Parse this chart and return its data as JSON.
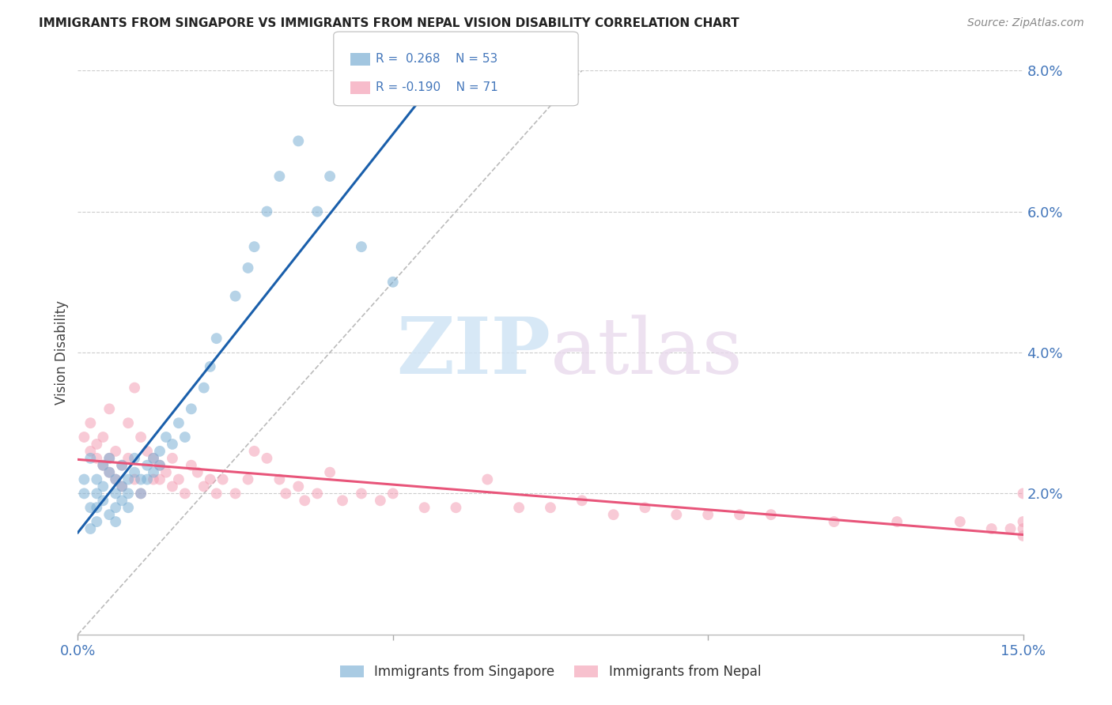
{
  "title": "IMMIGRANTS FROM SINGAPORE VS IMMIGRANTS FROM NEPAL VISION DISABILITY CORRELATION CHART",
  "source": "Source: ZipAtlas.com",
  "ylabel": "Vision Disability",
  "xlim": [
    0.0,
    0.15
  ],
  "ylim": [
    0.0,
    0.08
  ],
  "yticks_right": [
    0.02,
    0.04,
    0.06,
    0.08
  ],
  "xticks": [
    0.0,
    0.05,
    0.1,
    0.15
  ],
  "singapore_R": 0.268,
  "singapore_N": 53,
  "nepal_R": -0.19,
  "nepal_N": 71,
  "singapore_color": "#7BAFD4",
  "nepal_color": "#F4A0B5",
  "trend_singapore_color": "#1A5FAB",
  "trend_nepal_color": "#E8557A",
  "diagonal_color": "#BBBBBB",
  "watermark_zip": "ZIP",
  "watermark_atlas": "atlas",
  "background_color": "#FFFFFF",
  "grid_color": "#CCCCCC",
  "axis_color": "#4477BB",
  "singapore_x": [
    0.001,
    0.001,
    0.002,
    0.002,
    0.002,
    0.003,
    0.003,
    0.003,
    0.003,
    0.004,
    0.004,
    0.004,
    0.005,
    0.005,
    0.005,
    0.006,
    0.006,
    0.006,
    0.006,
    0.007,
    0.007,
    0.007,
    0.008,
    0.008,
    0.008,
    0.009,
    0.009,
    0.01,
    0.01,
    0.011,
    0.011,
    0.012,
    0.012,
    0.013,
    0.013,
    0.014,
    0.015,
    0.016,
    0.017,
    0.018,
    0.02,
    0.021,
    0.022,
    0.025,
    0.027,
    0.028,
    0.03,
    0.032,
    0.035,
    0.038,
    0.04,
    0.045,
    0.05
  ],
  "singapore_y": [
    0.02,
    0.022,
    0.018,
    0.025,
    0.015,
    0.022,
    0.018,
    0.02,
    0.016,
    0.024,
    0.019,
    0.021,
    0.023,
    0.017,
    0.025,
    0.02,
    0.018,
    0.022,
    0.016,
    0.024,
    0.019,
    0.021,
    0.022,
    0.018,
    0.02,
    0.023,
    0.025,
    0.022,
    0.02,
    0.024,
    0.022,
    0.025,
    0.023,
    0.026,
    0.024,
    0.028,
    0.027,
    0.03,
    0.028,
    0.032,
    0.035,
    0.038,
    0.042,
    0.048,
    0.052,
    0.055,
    0.06,
    0.065,
    0.07,
    0.06,
    0.065,
    0.055,
    0.05
  ],
  "nepal_x": [
    0.001,
    0.002,
    0.002,
    0.003,
    0.003,
    0.004,
    0.004,
    0.005,
    0.005,
    0.005,
    0.006,
    0.006,
    0.007,
    0.007,
    0.008,
    0.008,
    0.009,
    0.009,
    0.01,
    0.01,
    0.011,
    0.012,
    0.012,
    0.013,
    0.013,
    0.014,
    0.015,
    0.015,
    0.016,
    0.017,
    0.018,
    0.019,
    0.02,
    0.021,
    0.022,
    0.023,
    0.025,
    0.027,
    0.028,
    0.03,
    0.032,
    0.033,
    0.035,
    0.036,
    0.038,
    0.04,
    0.042,
    0.045,
    0.048,
    0.05,
    0.055,
    0.06,
    0.065,
    0.07,
    0.075,
    0.08,
    0.085,
    0.09,
    0.095,
    0.1,
    0.105,
    0.11,
    0.12,
    0.13,
    0.14,
    0.145,
    0.148,
    0.15,
    0.15,
    0.15,
    0.15
  ],
  "nepal_y": [
    0.028,
    0.026,
    0.03,
    0.025,
    0.027,
    0.024,
    0.028,
    0.023,
    0.025,
    0.032,
    0.022,
    0.026,
    0.024,
    0.021,
    0.025,
    0.03,
    0.022,
    0.035,
    0.02,
    0.028,
    0.026,
    0.022,
    0.025,
    0.024,
    0.022,
    0.023,
    0.021,
    0.025,
    0.022,
    0.02,
    0.024,
    0.023,
    0.021,
    0.022,
    0.02,
    0.022,
    0.02,
    0.022,
    0.026,
    0.025,
    0.022,
    0.02,
    0.021,
    0.019,
    0.02,
    0.023,
    0.019,
    0.02,
    0.019,
    0.02,
    0.018,
    0.018,
    0.022,
    0.018,
    0.018,
    0.019,
    0.017,
    0.018,
    0.017,
    0.017,
    0.017,
    0.017,
    0.016,
    0.016,
    0.016,
    0.015,
    0.015,
    0.02,
    0.016,
    0.014,
    0.015
  ]
}
